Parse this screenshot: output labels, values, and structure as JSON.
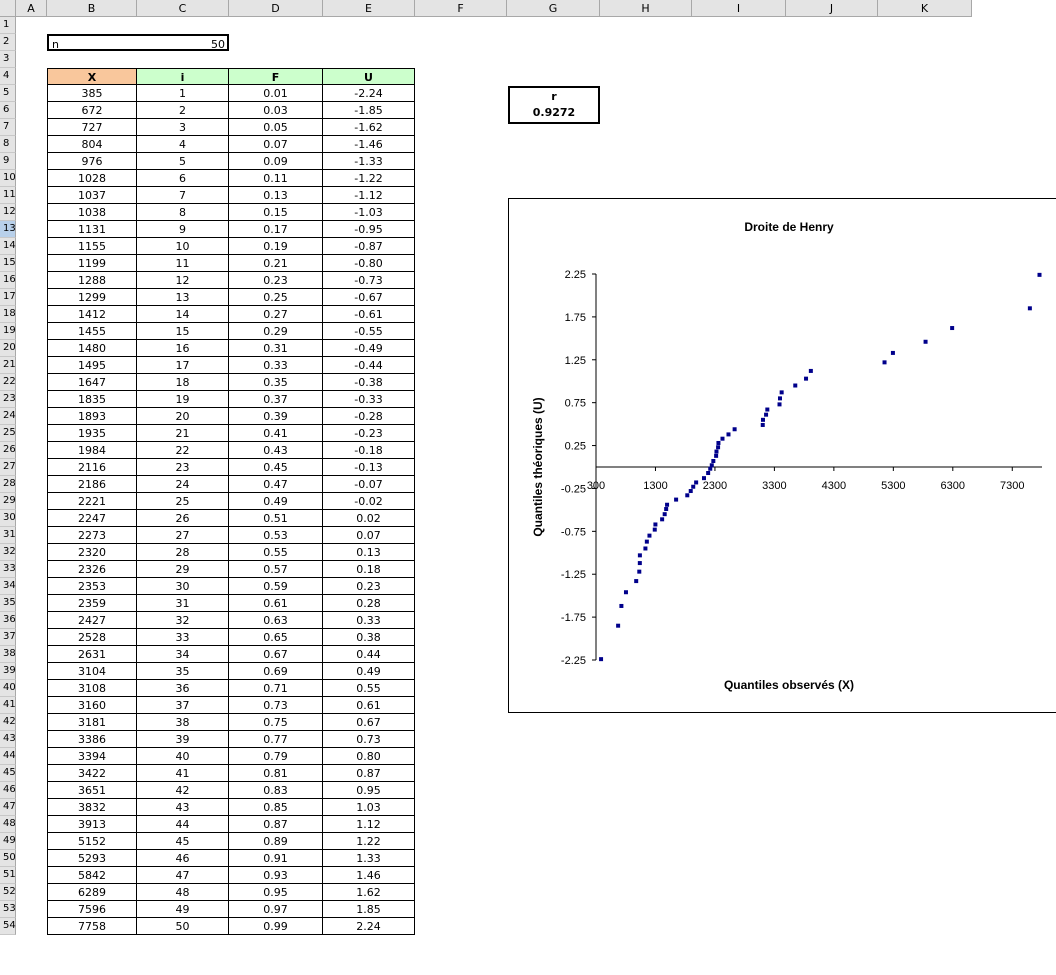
{
  "sheet": {
    "columns": [
      "A",
      "B",
      "C",
      "D",
      "E",
      "F",
      "G",
      "H",
      "I",
      "J",
      "K"
    ],
    "selected_row": 13,
    "rows": [
      "1",
      "2",
      "3",
      "4",
      "5",
      "6",
      "7",
      "8",
      "9",
      "10",
      "11",
      "12",
      "13",
      "14",
      "15",
      "16",
      "17",
      "18",
      "19",
      "20",
      "21",
      "22",
      "23",
      "24",
      "25",
      "26",
      "27",
      "28",
      "29",
      "30",
      "31",
      "32",
      "33",
      "34",
      "35",
      "36",
      "37",
      "38",
      "39",
      "40",
      "41",
      "42",
      "43",
      "44",
      "45",
      "46",
      "47",
      "48",
      "49",
      "50",
      "51",
      "52",
      "53",
      "54"
    ],
    "n_label": "n",
    "n_value": "50",
    "headers": {
      "x": "X",
      "i": "i",
      "f": "F",
      "u": "U"
    },
    "header_colors": {
      "x": "#f9c79c",
      "others": "#ccffcc"
    },
    "table": [
      [
        "385",
        "1",
        "0.01",
        "-2.24"
      ],
      [
        "672",
        "2",
        "0.03",
        "-1.85"
      ],
      [
        "727",
        "3",
        "0.05",
        "-1.62"
      ],
      [
        "804",
        "4",
        "0.07",
        "-1.46"
      ],
      [
        "976",
        "5",
        "0.09",
        "-1.33"
      ],
      [
        "1028",
        "6",
        "0.11",
        "-1.22"
      ],
      [
        "1037",
        "7",
        "0.13",
        "-1.12"
      ],
      [
        "1038",
        "8",
        "0.15",
        "-1.03"
      ],
      [
        "1131",
        "9",
        "0.17",
        "-0.95"
      ],
      [
        "1155",
        "10",
        "0.19",
        "-0.87"
      ],
      [
        "1199",
        "11",
        "0.21",
        "-0.80"
      ],
      [
        "1288",
        "12",
        "0.23",
        "-0.73"
      ],
      [
        "1299",
        "13",
        "0.25",
        "-0.67"
      ],
      [
        "1412",
        "14",
        "0.27",
        "-0.61"
      ],
      [
        "1455",
        "15",
        "0.29",
        "-0.55"
      ],
      [
        "1480",
        "16",
        "0.31",
        "-0.49"
      ],
      [
        "1495",
        "17",
        "0.33",
        "-0.44"
      ],
      [
        "1647",
        "18",
        "0.35",
        "-0.38"
      ],
      [
        "1835",
        "19",
        "0.37",
        "-0.33"
      ],
      [
        "1893",
        "20",
        "0.39",
        "-0.28"
      ],
      [
        "1935",
        "21",
        "0.41",
        "-0.23"
      ],
      [
        "1984",
        "22",
        "0.43",
        "-0.18"
      ],
      [
        "2116",
        "23",
        "0.45",
        "-0.13"
      ],
      [
        "2186",
        "24",
        "0.47",
        "-0.07"
      ],
      [
        "2221",
        "25",
        "0.49",
        "-0.02"
      ],
      [
        "2247",
        "26",
        "0.51",
        "0.02"
      ],
      [
        "2273",
        "27",
        "0.53",
        "0.07"
      ],
      [
        "2320",
        "28",
        "0.55",
        "0.13"
      ],
      [
        "2326",
        "29",
        "0.57",
        "0.18"
      ],
      [
        "2353",
        "30",
        "0.59",
        "0.23"
      ],
      [
        "2359",
        "31",
        "0.61",
        "0.28"
      ],
      [
        "2427",
        "32",
        "0.63",
        "0.33"
      ],
      [
        "2528",
        "33",
        "0.65",
        "0.38"
      ],
      [
        "2631",
        "34",
        "0.67",
        "0.44"
      ],
      [
        "3104",
        "35",
        "0.69",
        "0.49"
      ],
      [
        "3108",
        "36",
        "0.71",
        "0.55"
      ],
      [
        "3160",
        "37",
        "0.73",
        "0.61"
      ],
      [
        "3181",
        "38",
        "0.75",
        "0.67"
      ],
      [
        "3386",
        "39",
        "0.77",
        "0.73"
      ],
      [
        "3394",
        "40",
        "0.79",
        "0.80"
      ],
      [
        "3422",
        "41",
        "0.81",
        "0.87"
      ],
      [
        "3651",
        "42",
        "0.83",
        "0.95"
      ],
      [
        "3832",
        "43",
        "0.85",
        "1.03"
      ],
      [
        "3913",
        "44",
        "0.87",
        "1.12"
      ],
      [
        "5152",
        "45",
        "0.89",
        "1.22"
      ],
      [
        "5293",
        "46",
        "0.91",
        "1.33"
      ],
      [
        "5842",
        "47",
        "0.93",
        "1.46"
      ],
      [
        "6289",
        "48",
        "0.95",
        "1.62"
      ],
      [
        "7596",
        "49",
        "0.97",
        "1.85"
      ],
      [
        "7758",
        "50",
        "0.99",
        "2.24"
      ]
    ],
    "r_label": "r",
    "r_value": "0.9272"
  },
  "chart_data": {
    "type": "scatter",
    "title": "Droite de Henry",
    "xlabel": "Quantiles observés (X)",
    "ylabel": "Quantiles théoriques (U)",
    "xlim": [
      300,
      7800
    ],
    "ylim": [
      -2.25,
      2.25
    ],
    "x_ticks": [
      "300",
      "1300",
      "2300",
      "3300",
      "4300",
      "5300",
      "6300",
      "7300"
    ],
    "y_ticks": [
      "2.25",
      "1.75",
      "1.25",
      "0.75",
      "0.25",
      "-0.25",
      "-0.75",
      "-1.25",
      "-1.75",
      "-2.25"
    ],
    "marker_color": "#00008b",
    "x": [
      385,
      672,
      727,
      804,
      976,
      1028,
      1037,
      1038,
      1131,
      1155,
      1199,
      1288,
      1299,
      1412,
      1455,
      1480,
      1495,
      1647,
      1835,
      1893,
      1935,
      1984,
      2116,
      2186,
      2221,
      2247,
      2273,
      2320,
      2326,
      2353,
      2359,
      2427,
      2528,
      2631,
      3104,
      3108,
      3160,
      3181,
      3386,
      3394,
      3422,
      3651,
      3832,
      3913,
      5152,
      5293,
      5842,
      6289,
      7596,
      7758
    ],
    "y": [
      -2.24,
      -1.85,
      -1.62,
      -1.46,
      -1.33,
      -1.22,
      -1.12,
      -1.03,
      -0.95,
      -0.87,
      -0.8,
      -0.73,
      -0.67,
      -0.61,
      -0.55,
      -0.49,
      -0.44,
      -0.38,
      -0.33,
      -0.28,
      -0.23,
      -0.18,
      -0.13,
      -0.07,
      -0.02,
      0.02,
      0.07,
      0.13,
      0.18,
      0.23,
      0.28,
      0.33,
      0.38,
      0.44,
      0.49,
      0.55,
      0.61,
      0.67,
      0.73,
      0.8,
      0.87,
      0.95,
      1.03,
      1.12,
      1.22,
      1.33,
      1.46,
      1.62,
      1.85,
      2.24
    ]
  }
}
